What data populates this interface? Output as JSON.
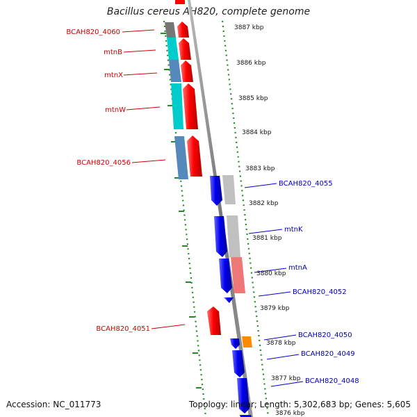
{
  "title": "Bacillus cereus AH820, complete genome",
  "footer": {
    "accession": "Accession: NC_011773",
    "summary": "Topology: linear; Length: 5,302,683 bp; Genes: 5,605"
  },
  "colors": {
    "forward_gene": "#ff0000",
    "reverse_gene": "#0000ee",
    "forward_label": "#cc0000",
    "reverse_label": "#0000aa",
    "tick": "#228B22",
    "backbone": "#888888",
    "highlight_orange": "#ff8c00"
  },
  "kbp_ticks": [
    "3887 kbp",
    "3886 kbp",
    "3885 kbp",
    "3884 kbp",
    "3883 kbp",
    "3882 kbp",
    "3881 kbp",
    "3880 kbp",
    "3879 kbp",
    "3878 kbp",
    "3877 kbp",
    "3876 kbp"
  ],
  "genes_forward": [
    {
      "label": "BCAH820_4060",
      "track_color": "#777777"
    },
    {
      "label": "mtnB",
      "track_color": "#00cccc"
    },
    {
      "label": "mtnX",
      "track_color": "#5588bb"
    },
    {
      "label": "mtnW",
      "track_color": "#00cccc"
    },
    {
      "label": "BCAH820_4056",
      "track_color": "#5588bb"
    },
    {
      "label": "BCAH820_4051",
      "track_color": ""
    }
  ],
  "genes_reverse": [
    {
      "label": "BCAH820_4055",
      "track_color": "#c0c0c0"
    },
    {
      "label": "mtnK",
      "track_color": "#c0c0c0"
    },
    {
      "label": "mtnA",
      "track_color": "#ee7777"
    },
    {
      "label": "BCAH820_4052",
      "track_color": ""
    },
    {
      "label": "BCAH820_4050",
      "track_color": "#ff8c00"
    },
    {
      "label": "BCAH820_4049",
      "track_color": ""
    },
    {
      "label": "BCAH820_4048",
      "track_color": ""
    }
  ]
}
